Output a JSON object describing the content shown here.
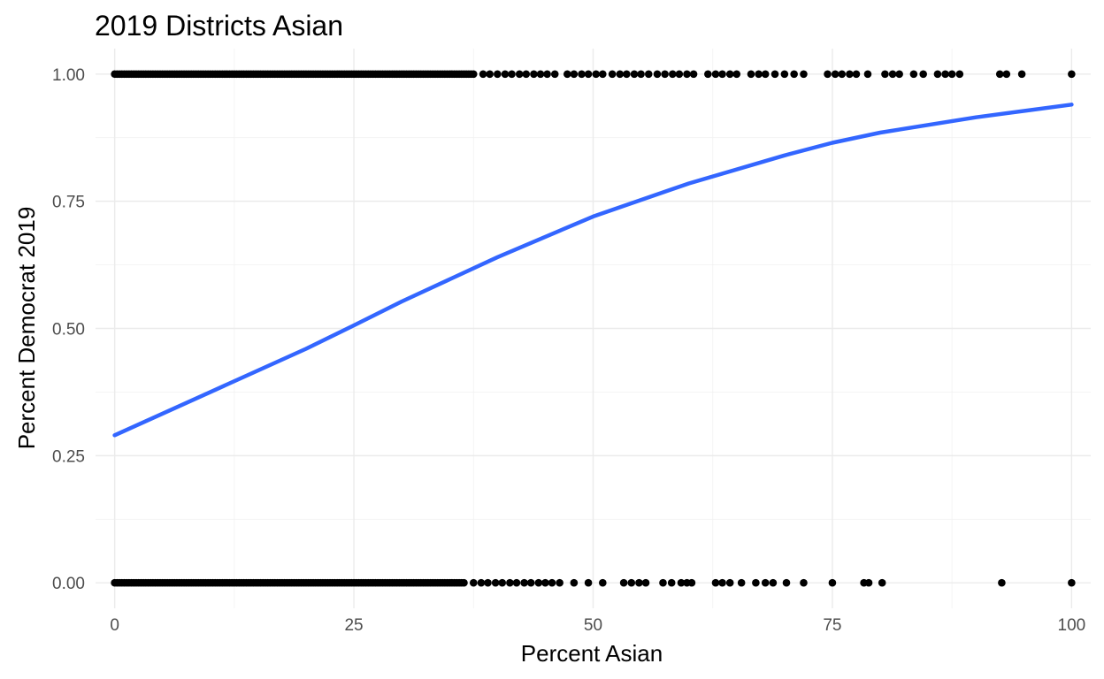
{
  "chart_data": {
    "type": "scatter",
    "title": "2019 Districts Asian",
    "xlabel": "Percent Asian",
    "ylabel": "Percent Democrat 2019",
    "xlim": [
      -2,
      102
    ],
    "ylim": [
      -0.05,
      1.05
    ],
    "x_ticks": [
      0,
      25,
      50,
      75,
      100
    ],
    "x_tick_labels": [
      "0",
      "25",
      "50",
      "75",
      "100"
    ],
    "y_ticks": [
      0,
      0.25,
      0.5,
      0.75,
      1
    ],
    "y_tick_labels": [
      "0.00",
      "0.25",
      "0.50",
      "0.75",
      "1.00"
    ],
    "grid": true,
    "legend": "none",
    "colors": {
      "points": "#000000",
      "fit_line": "#3366ff",
      "grid": "#ebebeb",
      "tick_text": "#4d4d4d"
    },
    "series": [
      {
        "type": "scatter",
        "dense_ranges": [
          {
            "y": 1,
            "from": 0,
            "to": 37.5
          },
          {
            "y": 0,
            "from": 0,
            "to": 36.5
          }
        ],
        "points": [
          [
            38.5,
            1
          ],
          [
            39.2,
            1
          ],
          [
            40.0,
            1
          ],
          [
            40.8,
            1
          ],
          [
            41.5,
            1
          ],
          [
            42.3,
            1
          ],
          [
            43.0,
            1
          ],
          [
            43.8,
            1
          ],
          [
            44.5,
            1
          ],
          [
            45.2,
            1
          ],
          [
            46.0,
            1
          ],
          [
            47.3,
            1
          ],
          [
            48.0,
            1
          ],
          [
            48.8,
            1
          ],
          [
            49.5,
            1
          ],
          [
            50.3,
            1
          ],
          [
            51.0,
            1
          ],
          [
            52.0,
            1
          ],
          [
            52.8,
            1
          ],
          [
            53.5,
            1
          ],
          [
            54.3,
            1
          ],
          [
            55.0,
            1
          ],
          [
            55.8,
            1
          ],
          [
            56.7,
            1
          ],
          [
            57.5,
            1
          ],
          [
            58.3,
            1
          ],
          [
            59.0,
            1
          ],
          [
            59.8,
            1
          ],
          [
            60.5,
            1
          ],
          [
            62.0,
            1
          ],
          [
            62.8,
            1
          ],
          [
            63.5,
            1
          ],
          [
            64.3,
            1
          ],
          [
            65.0,
            1
          ],
          [
            66.5,
            1
          ],
          [
            67.3,
            1
          ],
          [
            68.0,
            1
          ],
          [
            69.0,
            1
          ],
          [
            70.0,
            1
          ],
          [
            71.0,
            1
          ],
          [
            72.0,
            1
          ],
          [
            74.5,
            1
          ],
          [
            75.3,
            1
          ],
          [
            76.0,
            1
          ],
          [
            76.8,
            1
          ],
          [
            77.5,
            1
          ],
          [
            78.7,
            1
          ],
          [
            80.5,
            1
          ],
          [
            81.3,
            1
          ],
          [
            82.0,
            1
          ],
          [
            83.5,
            1
          ],
          [
            84.5,
            1
          ],
          [
            86.0,
            1
          ],
          [
            86.8,
            1
          ],
          [
            87.5,
            1
          ],
          [
            88.3,
            1
          ],
          [
            92.5,
            1
          ],
          [
            93.2,
            1
          ],
          [
            94.8,
            1
          ],
          [
            100,
            1
          ],
          [
            37.5,
            0
          ],
          [
            38.3,
            0
          ],
          [
            39.0,
            0
          ],
          [
            39.8,
            0
          ],
          [
            40.5,
            0
          ],
          [
            41.3,
            0
          ],
          [
            42.0,
            0
          ],
          [
            42.8,
            0
          ],
          [
            43.5,
            0
          ],
          [
            44.3,
            0
          ],
          [
            45.0,
            0
          ],
          [
            45.7,
            0
          ],
          [
            46.5,
            0
          ],
          [
            48.0,
            0
          ],
          [
            49.5,
            0
          ],
          [
            51.0,
            0
          ],
          [
            53.2,
            0
          ],
          [
            54.0,
            0
          ],
          [
            54.8,
            0
          ],
          [
            55.5,
            0
          ],
          [
            57.3,
            0
          ],
          [
            58.2,
            0
          ],
          [
            59.2,
            0
          ],
          [
            59.8,
            0
          ],
          [
            60.3,
            0
          ],
          [
            62.8,
            0
          ],
          [
            63.5,
            0
          ],
          [
            64.3,
            0
          ],
          [
            65.5,
            0
          ],
          [
            67.0,
            0
          ],
          [
            68.0,
            0
          ],
          [
            68.8,
            0
          ],
          [
            70.2,
            0
          ],
          [
            72.0,
            0
          ],
          [
            75.0,
            0
          ],
          [
            78.3,
            0
          ],
          [
            78.8,
            0
          ],
          [
            80.2,
            0
          ],
          [
            92.7,
            0
          ],
          [
            100,
            0
          ]
        ]
      },
      {
        "type": "line",
        "x": [
          0,
          10,
          20,
          25,
          30,
          40,
          50,
          60,
          70,
          75,
          80,
          90,
          100
        ],
        "y": [
          0.29,
          0.375,
          0.46,
          0.506,
          0.553,
          0.64,
          0.72,
          0.785,
          0.84,
          0.865,
          0.885,
          0.915,
          0.94
        ]
      }
    ]
  }
}
